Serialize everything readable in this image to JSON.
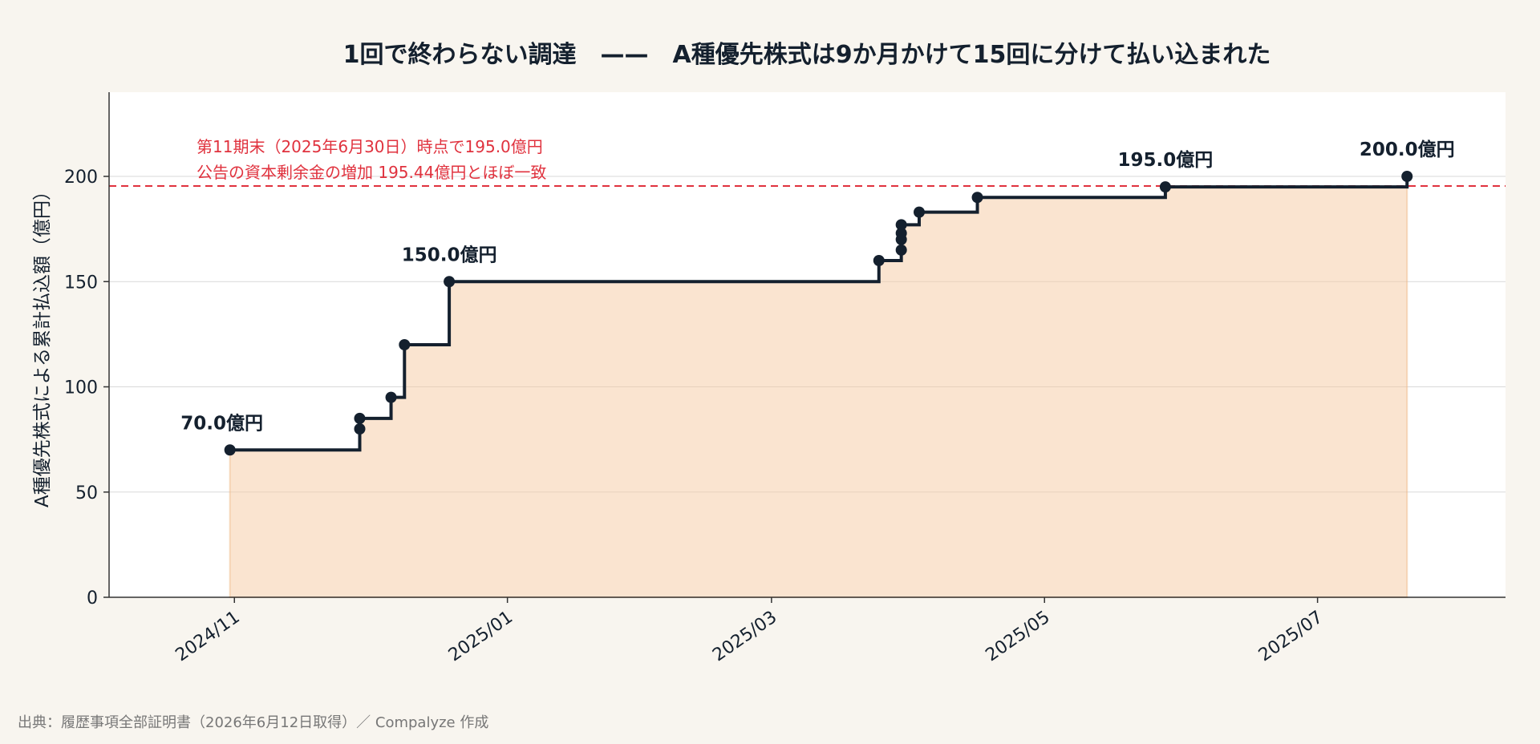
{
  "chart_data": {
    "type": "line",
    "step": "post",
    "title": "1回で終わらない調達　——　A種優先株式は9か月かけて15回に分けて払い込まれた",
    "ylabel": "A種優先株式による累計払込額（億円）",
    "xlabel": "",
    "ylim": [
      0,
      240
    ],
    "xlim": [
      "2024-10-04",
      "2025-08-12"
    ],
    "yticks": [
      0,
      50,
      100,
      150,
      200
    ],
    "xticks": [
      {
        "date": "2024-11-01",
        "label": "2024/11"
      },
      {
        "date": "2025-01-01",
        "label": "2025/01"
      },
      {
        "date": "2025-03-01",
        "label": "2025/03"
      },
      {
        "date": "2025-05-01",
        "label": "2025/05"
      },
      {
        "date": "2025-07-01",
        "label": "2025/07"
      }
    ],
    "grid": "horizontal",
    "fill": "under-line",
    "points": [
      {
        "x": "2024-10-31",
        "y": 70
      },
      {
        "x": "2024-11-29",
        "y": 80
      },
      {
        "x": "2024-11-29",
        "y": 85
      },
      {
        "x": "2024-12-06",
        "y": 95
      },
      {
        "x": "2024-12-09",
        "y": 120
      },
      {
        "x": "2024-12-19",
        "y": 150
      },
      {
        "x": "2025-03-25",
        "y": 160
      },
      {
        "x": "2025-03-30",
        "y": 165
      },
      {
        "x": "2025-03-30",
        "y": 170
      },
      {
        "x": "2025-03-30",
        "y": 173
      },
      {
        "x": "2025-03-30",
        "y": 177
      },
      {
        "x": "2025-04-03",
        "y": 183
      },
      {
        "x": "2025-04-16",
        "y": 190
      },
      {
        "x": "2025-05-28",
        "y": 195
      },
      {
        "x": "2025-07-21",
        "y": 200
      }
    ],
    "data_labels": [
      {
        "x": "2024-10-31",
        "y": 70,
        "text": "70.0億円",
        "position": "upper-left"
      },
      {
        "x": "2024-12-19",
        "y": 150,
        "text": "150.0億円",
        "position": "above"
      },
      {
        "x": "2025-05-28",
        "y": 195,
        "text": "195.0億円",
        "position": "above"
      },
      {
        "x": "2025-07-21",
        "y": 200,
        "text": "200.0億円",
        "position": "above"
      }
    ],
    "reference_line": {
      "y": 195.44,
      "style": "dashed",
      "color": "#e0323e",
      "annotation": [
        "第11期末（2025年6月30日）時点で195.0億円",
        "公告の資本剰余金の増加 195.44億円とほぼ一致"
      ]
    },
    "colors": {
      "line": "#14202e",
      "fill": "#f5c9a2",
      "grid": "#d9d9d9",
      "reference": "#e0323e",
      "background": "#f8f5ef",
      "plot_background": "#ffffff"
    }
  },
  "footer": {
    "source": "出典：履歴事項全部証明書（2026年6月12日取得）／ Compalyze 作成"
  }
}
